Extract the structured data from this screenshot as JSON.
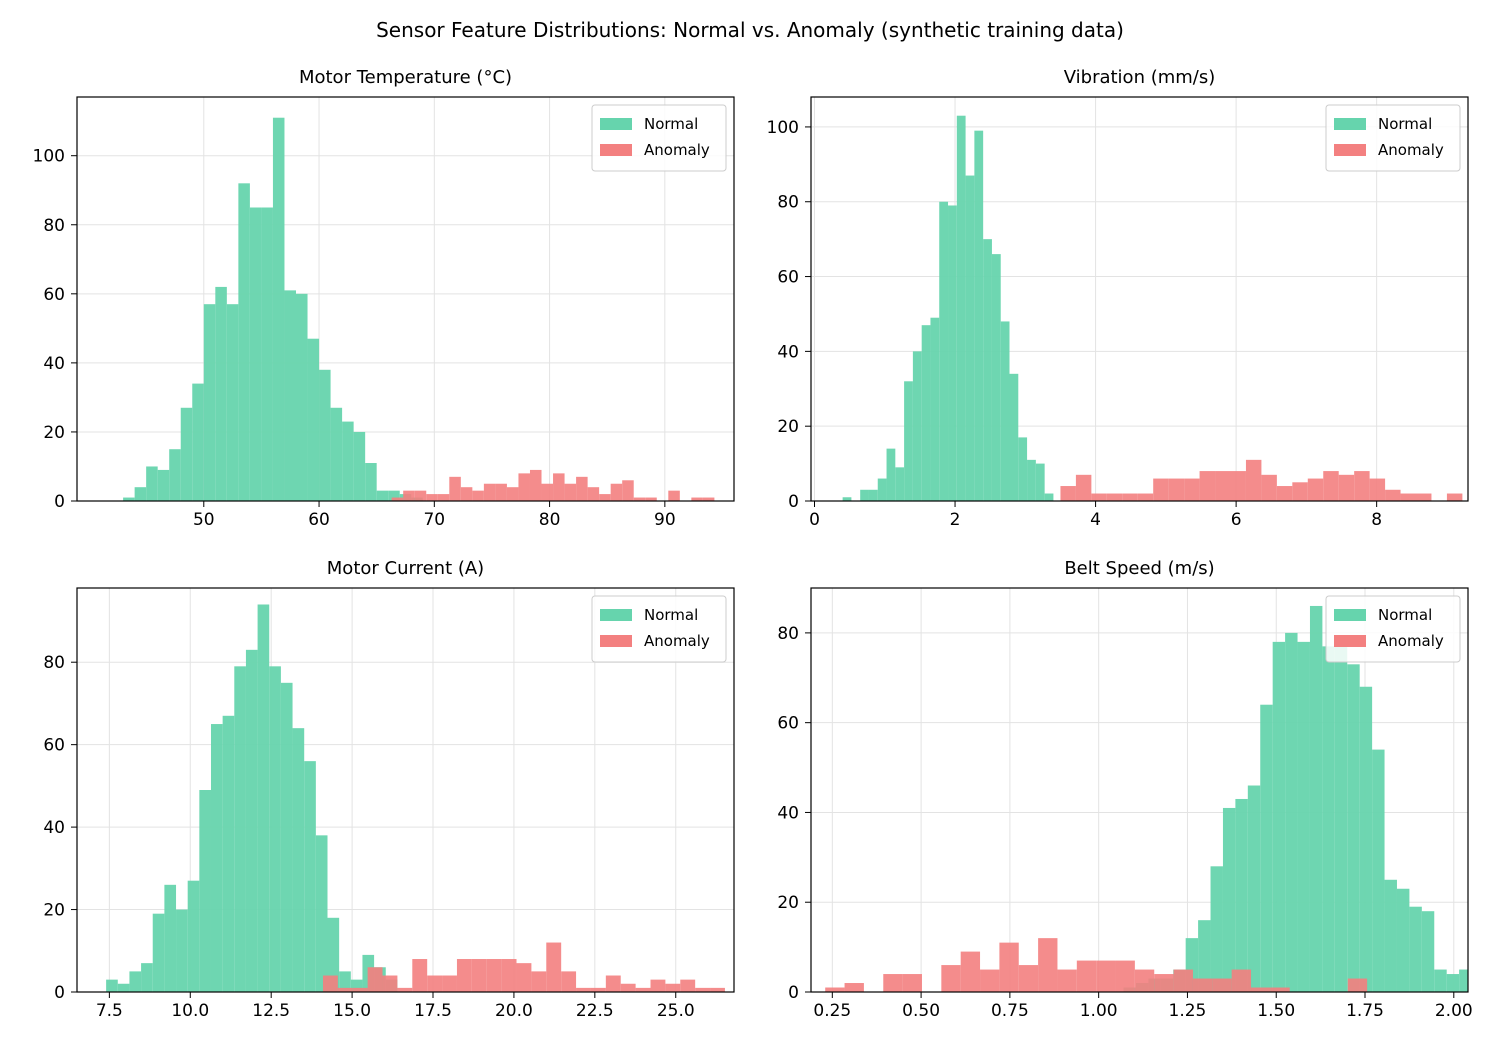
{
  "figure": {
    "title": "Sensor Feature Distributions: Normal vs. Anomaly (synthetic training data)",
    "colors": {
      "normal": "#66d4ad",
      "anomaly": "#f38080",
      "overlap": "#a07f6a"
    }
  },
  "chart_data": [
    {
      "type": "bar",
      "title": "Motor Temperature (°C)",
      "xlabel": "",
      "ylabel": "",
      "xlim": [
        39,
        96
      ],
      "ylim": [
        0,
        117
      ],
      "xticks": [
        50,
        60,
        70,
        80,
        90
      ],
      "yticks": [
        0,
        20,
        40,
        60,
        80,
        100
      ],
      "grid": true,
      "legend": "top-right",
      "series": [
        {
          "name": "Normal",
          "bin_start": 43.0,
          "bin_width": 1.0,
          "values": [
            1,
            4,
            10,
            9,
            15,
            27,
            34,
            57,
            62,
            57,
            92,
            85,
            85,
            111,
            61,
            60,
            47,
            38,
            27,
            23,
            20,
            11,
            3,
            3,
            2,
            1
          ]
        },
        {
          "name": "Anomaly",
          "bin_start": 66.3,
          "bin_width": 1.0,
          "values": [
            1,
            3,
            3,
            2,
            2,
            7,
            4,
            3,
            5,
            5,
            4,
            8,
            9,
            5,
            8,
            5,
            7,
            4,
            2,
            5,
            6,
            1,
            1,
            0,
            3,
            0,
            1,
            1
          ]
        }
      ]
    },
    {
      "type": "bar",
      "title": "Vibration (mm/s)",
      "xlabel": "",
      "ylabel": "",
      "xlim": [
        -0.05,
        9.3
      ],
      "ylim": [
        0,
        108
      ],
      "xticks": [
        0,
        2,
        4,
        6,
        8
      ],
      "yticks": [
        0,
        20,
        40,
        60,
        80,
        100
      ],
      "grid": true,
      "legend": "top-right",
      "series": [
        {
          "name": "Normal",
          "bin_start": 0.4,
          "bin_width": 0.125,
          "values": [
            1,
            0,
            3,
            3,
            6,
            14,
            9,
            32,
            40,
            47,
            49,
            80,
            79,
            103,
            87,
            99,
            70,
            66,
            48,
            34,
            17,
            11,
            10,
            2
          ]
        },
        {
          "name": "Anomaly",
          "bin_start": 3.5,
          "bin_width": 0.22,
          "values": [
            4,
            7,
            2,
            2,
            2,
            2,
            6,
            6,
            6,
            8,
            8,
            8,
            11,
            7,
            4,
            5,
            6,
            8,
            7,
            8,
            6,
            3,
            2,
            2,
            0,
            2,
            0,
            0,
            0,
            0,
            0,
            2
          ]
        }
      ]
    },
    {
      "type": "bar",
      "title": "Motor Current (A)",
      "xlabel": "",
      "ylabel": "",
      "xlim": [
        6.5,
        26.8
      ],
      "ylim": [
        0,
        98
      ],
      "xticks": [
        7.5,
        10.0,
        12.5,
        15.0,
        17.5,
        20.0,
        22.5,
        25.0
      ],
      "yticks": [
        0,
        20,
        40,
        60,
        80
      ],
      "grid": true,
      "legend": "top-right",
      "series": [
        {
          "name": "Normal",
          "bin_start": 7.4,
          "bin_width": 0.36,
          "values": [
            3,
            2,
            5,
            7,
            19,
            26,
            20,
            27,
            49,
            65,
            67,
            79,
            83,
            94,
            79,
            75,
            64,
            56,
            38,
            18,
            5,
            3,
            9,
            6,
            3
          ]
        },
        {
          "name": "Anomaly",
          "bin_start": 14.1,
          "bin_width": 0.46,
          "values": [
            4,
            1,
            1,
            6,
            4,
            1,
            8,
            4,
            4,
            8,
            8,
            8,
            8,
            7,
            5,
            12,
            5,
            1,
            1,
            4,
            2,
            1,
            3,
            2,
            3,
            1,
            1,
            0,
            0,
            0,
            0,
            0,
            0,
            1
          ]
        }
      ]
    },
    {
      "type": "bar",
      "title": "Belt Speed (m/s)",
      "xlabel": "",
      "ylabel": "",
      "xlim": [
        0.19,
        2.04
      ],
      "ylim": [
        0,
        90
      ],
      "xticks": [
        0.25,
        0.5,
        0.75,
        1.0,
        1.25,
        1.5,
        1.75,
        2.0
      ],
      "yticks": [
        0,
        20,
        40,
        60,
        80
      ],
      "grid": true,
      "legend": "top-right",
      "series": [
        {
          "name": "Normal",
          "bin_start": 1.07,
          "bin_width": 0.035,
          "values": [
            1,
            2,
            3,
            3,
            5,
            12,
            16,
            28,
            41,
            43,
            46,
            64,
            78,
            80,
            78,
            86,
            77,
            77,
            73,
            68,
            54,
            25,
            23,
            19,
            18,
            5,
            4,
            5,
            3,
            3
          ]
        },
        {
          "name": "Anomaly",
          "bin_start": 0.23,
          "bin_width": 0.0545,
          "values": [
            1,
            2,
            0,
            4,
            4,
            0,
            6,
            9,
            5,
            11,
            6,
            12,
            5,
            7,
            7,
            7,
            5,
            4,
            5,
            3,
            3,
            5,
            1,
            1,
            0,
            0,
            0,
            3
          ]
        }
      ]
    }
  ]
}
